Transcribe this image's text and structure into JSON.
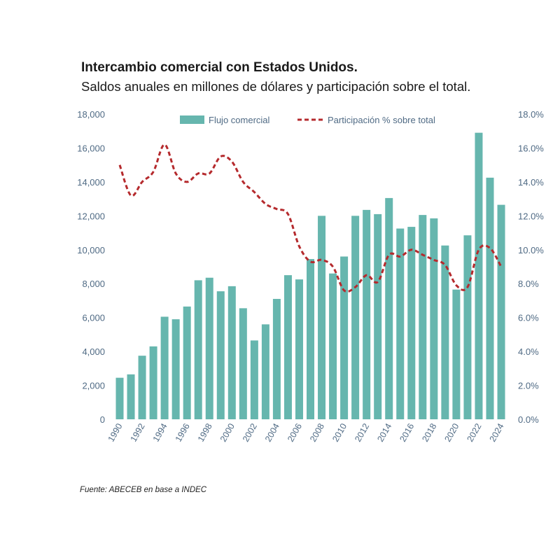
{
  "header": {
    "title": "Intercambio comercial con Estados Unidos.",
    "subtitle": "Saldos anuales en millones de dólares y participación sobre el total."
  },
  "footer": {
    "source": "Fuente: ABECEB en base a INDEC"
  },
  "colors": {
    "bar": "#66b6ae",
    "line": "#b52a2d",
    "axis_text": "#4f6a84"
  },
  "chart_data": {
    "type": "bar",
    "title": "Intercambio comercial con Estados Unidos.",
    "subtitle": "Saldos anuales en millones de dólares y participación sobre el total.",
    "x": [
      1990,
      1991,
      1992,
      1993,
      1994,
      1995,
      1996,
      1997,
      1998,
      1999,
      2000,
      2001,
      2002,
      2003,
      2004,
      2005,
      2006,
      2007,
      2008,
      2009,
      2010,
      2011,
      2012,
      2013,
      2014,
      2015,
      2016,
      2017,
      2018,
      2019,
      2020,
      2021,
      2022,
      2023,
      2024
    ],
    "x_tick_labels": [
      "1990",
      "1992",
      "1994",
      "1996",
      "1998",
      "2000",
      "2002",
      "2004",
      "2006",
      "2008",
      "2010",
      "2012",
      "2014",
      "2016",
      "2018",
      "2020",
      "2022",
      "2024"
    ],
    "y_ticks_left": [
      "0",
      "2,000",
      "4,000",
      "6,000",
      "8,000",
      "10,000",
      "12,000",
      "14,000",
      "16,000",
      "18,000"
    ],
    "y_ticks_right": [
      "0.0%",
      "2.0%",
      "4.0%",
      "6.0%",
      "8.0%",
      "10.0%",
      "12.0%",
      "14.0%",
      "16.0%",
      "18.0%"
    ],
    "ylim_left": [
      0,
      18000
    ],
    "ylim_right": [
      0,
      18
    ],
    "series": [
      {
        "name": "Flujo comercial",
        "type": "bar",
        "axis": "left",
        "values": [
          2450,
          2650,
          3750,
          4300,
          6050,
          5900,
          6650,
          8200,
          8350,
          7550,
          7850,
          6550,
          4650,
          5600,
          7100,
          8500,
          8250,
          9450,
          12000,
          8600,
          9600,
          12000,
          12350,
          12100,
          13050,
          11250,
          11350,
          12050,
          11850,
          10250,
          7650,
          10850,
          16900,
          14250,
          12650
        ]
      },
      {
        "name": "Participación % sobre total",
        "type": "line",
        "style": "dashed",
        "axis": "right",
        "values": [
          15.0,
          13.2,
          14.0,
          14.6,
          16.2,
          14.5,
          14.0,
          14.5,
          14.5,
          15.5,
          15.2,
          14.0,
          13.4,
          12.7,
          12.4,
          12.1,
          10.2,
          9.3,
          9.4,
          9.0,
          7.6,
          7.8,
          8.5,
          8.1,
          9.7,
          9.6,
          10.0,
          9.7,
          9.4,
          9.1,
          7.9,
          7.8,
          10.0,
          10.1,
          9.0
        ]
      }
    ],
    "legend": {
      "position": "top-center",
      "items": [
        "Flujo comercial",
        "Participación % sobre total"
      ]
    },
    "grid": false
  }
}
